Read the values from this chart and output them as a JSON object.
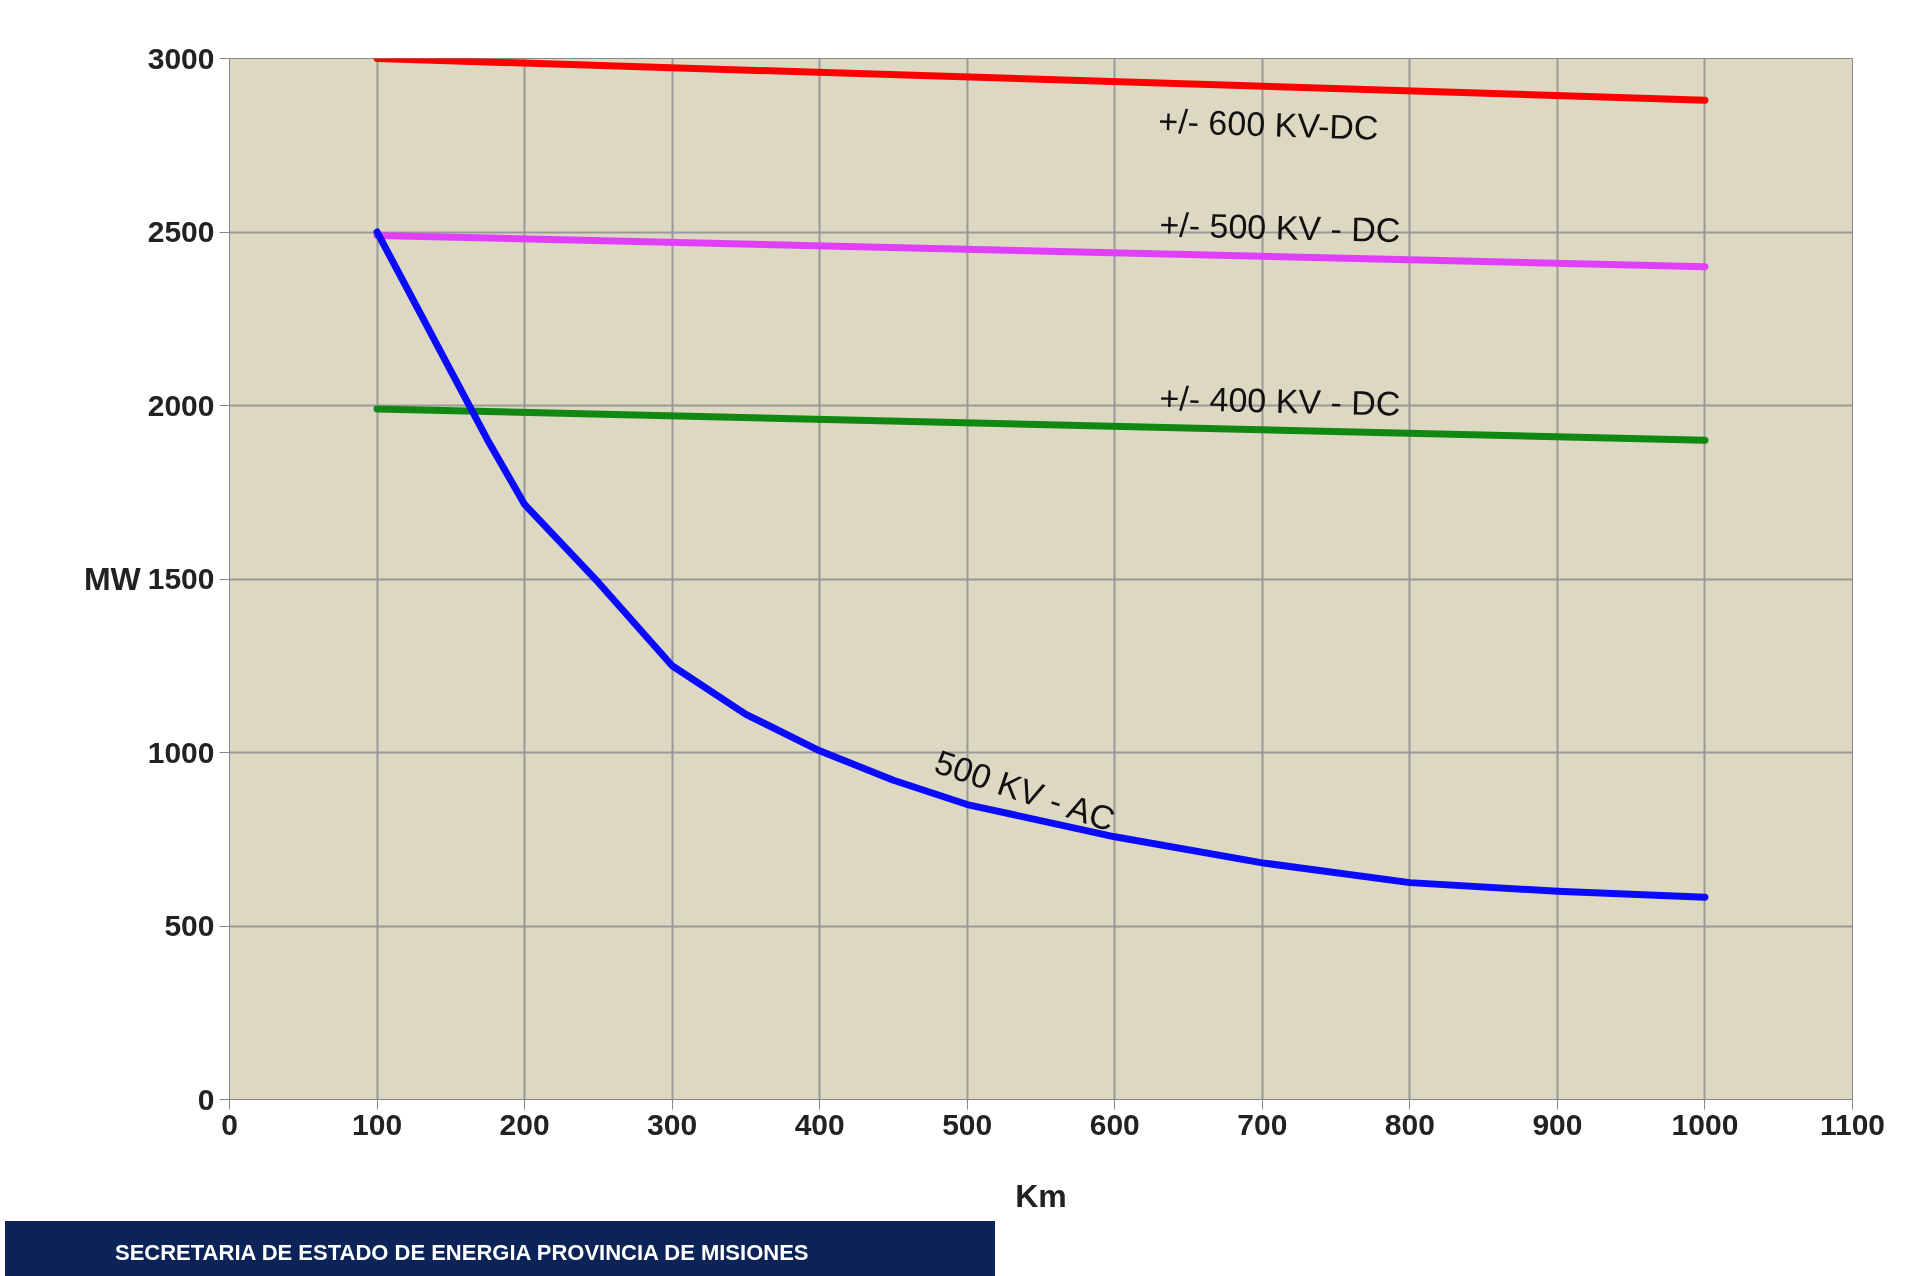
{
  "chart_data": {
    "type": "line",
    "xlabel": "Km",
    "ylabel": "MW",
    "series": [
      {
        "name": "+/- 600 KV-DC",
        "color": "#ff0000",
        "x": [
          100,
          1000
        ],
        "values": [
          3000,
          2880
        ]
      },
      {
        "name": "+/- 500 KV - DC",
        "color": "#e040fb",
        "x": [
          100,
          1000
        ],
        "values": [
          2490,
          2400
        ]
      },
      {
        "name": "+/- 400 KV - DC",
        "color": "#118811",
        "x": [
          100,
          1000
        ],
        "values": [
          1990,
          1900
        ]
      },
      {
        "name": "500 KV - AC",
        "color": "#0a0aff",
        "x": [
          100,
          125,
          150,
          175,
          200,
          250,
          300,
          350,
          400,
          450,
          500,
          600,
          700,
          800,
          900,
          1000
        ],
        "values": [
          2500,
          2300,
          2100,
          1900,
          1715,
          1490,
          1250,
          1110,
          1005,
          920,
          850,
          757,
          682,
          625,
          600,
          583
        ]
      }
    ],
    "xlim": [
      0,
      1100
    ],
    "ylim": [
      0,
      3000
    ],
    "xticks": [
      0,
      100,
      200,
      300,
      400,
      500,
      600,
      700,
      800,
      900,
      1000,
      1100
    ],
    "yticks": [
      0,
      500,
      1000,
      1500,
      2000,
      2500,
      3000
    ],
    "grid": true,
    "marker": "none",
    "line_style": "solid",
    "annotations": [
      "SECRETARIA DE ESTADO DE ENERGIA PROVINCIA DE MISIONES"
    ]
  }
}
